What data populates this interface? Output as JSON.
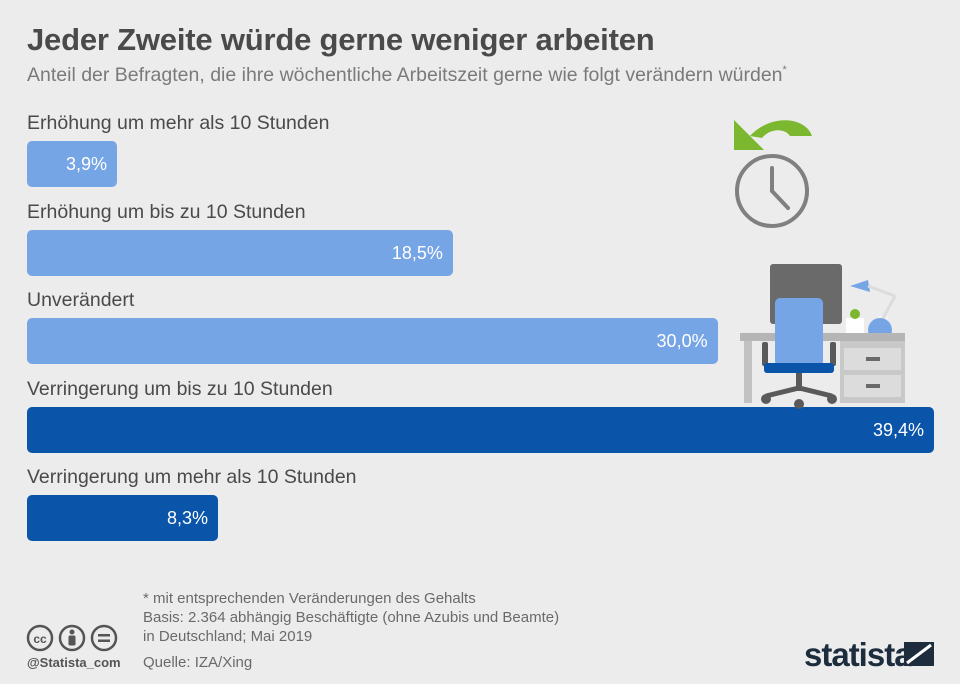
{
  "header": {
    "title": "Jeder Zweite würde gerne weniger arbeiten",
    "subtitle": "Anteil der Befragten, die ihre wöchentliche Arbeitszeit gerne wie folgt verändern würden",
    "subtitle_marker": "*"
  },
  "chart_data": {
    "type": "bar",
    "orientation": "horizontal",
    "title": "Jeder Zweite würde gerne weniger arbeiten",
    "subtitle": "Anteil der Befragten, die ihre wöchentliche Arbeitszeit gerne wie folgt verändern würden",
    "categories": [
      "Erhöhung um mehr als 10 Stunden",
      "Erhöhung um bis zu 10 Stunden",
      "Unverändert",
      "Verringerung um bis zu 10 Stunden",
      "Verringerung um mehr als 10 Stunden"
    ],
    "values": [
      3.9,
      18.5,
      30.0,
      39.4,
      8.3
    ],
    "value_labels": [
      "3,9%",
      "18,5%",
      "30,0%",
      "39,4%",
      "8,3%"
    ],
    "unit": "%",
    "xlim": [
      0,
      39.4
    ],
    "colors": [
      "#76a5e6",
      "#76a5e6",
      "#76a5e6",
      "#0a55aa",
      "#0a55aa"
    ],
    "grid": false,
    "legend": "none"
  },
  "footer": {
    "note": "* mit entsprechenden Veränderungen des Gehalts",
    "basis_line1": "Basis: 2.364 abhängig Beschäftigte (ohne Azubis und Beamte)",
    "basis_line2": "in Deutschland; Mai 2019",
    "source": "Quelle: IZA/Xing",
    "handle": "@Statista_com",
    "logo": "statista"
  },
  "icons": {
    "illustration": "clock-desk-illustration",
    "license": [
      "cc-icon",
      "attribution-icon",
      "no-derivatives-icon"
    ],
    "logo_mark": "statista-logo-mark"
  }
}
